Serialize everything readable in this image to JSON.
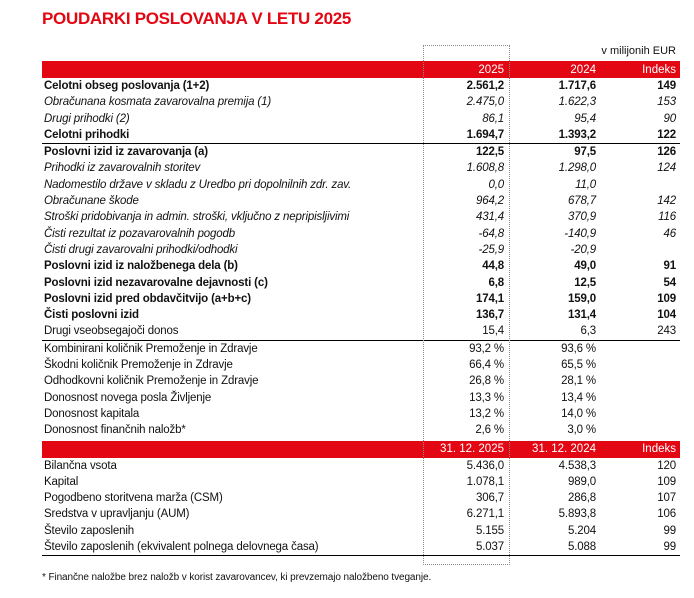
{
  "title": "POUDARKI POSLOVANJA V LETU 2025",
  "units_note": "v milijonih EUR",
  "accent_color": "#e30613",
  "footnote": "* Finančne naložbe brez naložb v korist zavarovancev, ki prevzemajo naložbeno tveganje.",
  "table1": {
    "header": {
      "c2025": "2025",
      "c2024": "2024",
      "index": "Indeks"
    },
    "sections": [
      {
        "rows": [
          {
            "label": "Celotni obseg poslovanja (1+2)",
            "v2025": "2.561,2",
            "v2024": "1.717,6",
            "index": "149",
            "style": "bold"
          },
          {
            "label": "Obračunana kosmata zavarovalna premija (1)",
            "v2025": "2.475,0",
            "v2024": "1.622,3",
            "index": "153",
            "style": "italic"
          },
          {
            "label": "Drugi prihodki (2)",
            "v2025": "86,1",
            "v2024": "95,4",
            "index": "90",
            "style": "italic"
          },
          {
            "label": "Celotni prihodki",
            "v2025": "1.694,7",
            "v2024": "1.393,2",
            "index": "122",
            "style": "bold"
          }
        ]
      },
      {
        "rows": [
          {
            "label": "Poslovni izid iz zavarovanja (a)",
            "v2025": "122,5",
            "v2024": "97,5",
            "index": "126",
            "style": "bold"
          },
          {
            "label": "Prihodki iz zavarovalnih storitev",
            "v2025": "1.608,8",
            "v2024": "1.298,0",
            "index": "124",
            "style": "italic"
          },
          {
            "label": "Nadomestilo države v skladu z Uredbo pri dopolnilnih zdr. zav.",
            "v2025": "0,0",
            "v2024": "11,0",
            "index": "",
            "style": "italic"
          },
          {
            "label": "Obračunane škode",
            "v2025": "964,2",
            "v2024": "678,7",
            "index": "142",
            "style": "italic"
          },
          {
            "label": "Stroški pridobivanja in admin. stroški, vključno z nepripisljivimi",
            "v2025": "431,4",
            "v2024": "370,9",
            "index": "116",
            "style": "italic"
          },
          {
            "label": "Čisti rezultat iz pozavarovalnih pogodb",
            "v2025": "-64,8",
            "v2024": "-140,9",
            "index": "46",
            "style": "italic"
          },
          {
            "label": "Čisti drugi zavarovalni prihodki/odhodki",
            "v2025": "-25,9",
            "v2024": "-20,9",
            "index": "",
            "style": "italic"
          },
          {
            "label": "Poslovni izid iz naložbenega dela (b)",
            "v2025": "44,8",
            "v2024": "49,0",
            "index": "91",
            "style": "bold"
          },
          {
            "label": "Poslovni izid nezavarovalne dejavnosti (c)",
            "v2025": "6,8",
            "v2024": "12,5",
            "index": "54",
            "style": "bold"
          },
          {
            "label": "Poslovni izid pred obdavčitvijo (a+b+c)",
            "v2025": "174,1",
            "v2024": "159,0",
            "index": "109",
            "style": "bold"
          },
          {
            "label": "Čisti poslovni izid",
            "v2025": "136,7",
            "v2024": "131,4",
            "index": "104",
            "style": "bold"
          },
          {
            "label": "Drugi vseobsegajoči donos",
            "v2025": "15,4",
            "v2024": "6,3",
            "index": "243",
            "style": "normal"
          }
        ]
      },
      {
        "rows": [
          {
            "label": "Kombinirani količnik Premoženje in Zdravje",
            "v2025": "93,2 %",
            "v2024": "93,6 %",
            "index": "",
            "style": "normal"
          },
          {
            "label": "Škodni količnik Premoženje in Zdravje",
            "v2025": "66,4 %",
            "v2024": "65,5 %",
            "index": "",
            "style": "normal"
          },
          {
            "label": "Odhodkovni količnik Premoženje in Zdravje",
            "v2025": "26,8 %",
            "v2024": "28,1 %",
            "index": "",
            "style": "normal"
          },
          {
            "label": "Donosnost novega posla Življenje",
            "v2025": "13,3 %",
            "v2024": "13,4 %",
            "index": "",
            "style": "normal"
          },
          {
            "label": "Donosnost kapitala",
            "v2025": "13,2 %",
            "v2024": "14,0 %",
            "index": "",
            "style": "normal"
          },
          {
            "label": "Donosnost finančnih naložb*",
            "v2025": "2,6 %",
            "v2024": "3,0 %",
            "index": "",
            "style": "normal"
          }
        ]
      }
    ]
  },
  "table2": {
    "header": {
      "c2025": "31. 12. 2025",
      "c2024": "31. 12. 2024",
      "index": "Indeks"
    },
    "sections": [
      {
        "rows": [
          {
            "label": "Bilančna vsota",
            "v2025": "5.436,0",
            "v2024": "4.538,3",
            "index": "120",
            "style": "normal"
          },
          {
            "label": "Kapital",
            "v2025": "1.078,1",
            "v2024": "989,0",
            "index": "109",
            "style": "normal"
          },
          {
            "label": "Pogodbeno storitvena marža (CSM)",
            "v2025": "306,7",
            "v2024": "286,8",
            "index": "107",
            "style": "normal"
          },
          {
            "label": "Sredstva v upravljanju (AUM)",
            "v2025": "6.271,1",
            "v2024": "5.893,8",
            "index": "106",
            "style": "normal"
          },
          {
            "label": "Število zaposlenih",
            "v2025": "5.155",
            "v2024": "5.204",
            "index": "99",
            "style": "normal"
          },
          {
            "label": "Število zaposlenih (ekvivalent polnega delovnega časa)",
            "v2025": "5.037",
            "v2024": "5.088",
            "index": "99",
            "style": "normal"
          }
        ]
      }
    ]
  }
}
